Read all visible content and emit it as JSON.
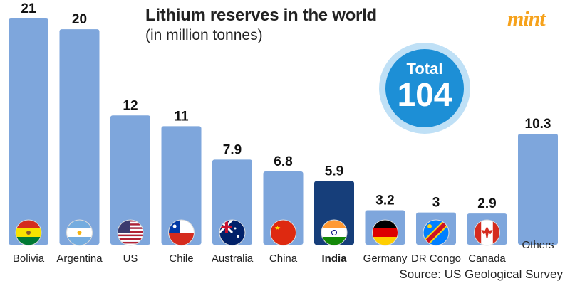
{
  "header": {
    "title": "Lithium reserves in the world",
    "subtitle": "(in million tonnes)",
    "logo": "mint"
  },
  "total": {
    "label": "Total",
    "value": "104"
  },
  "source": "Source: US Geological Survey",
  "colors": {
    "bar": "#7ea6dc",
    "highlight_bar": "#163e7a",
    "badge": "#1d8fd6"
  },
  "chart_data": {
    "type": "bar",
    "categories": [
      "Bolivia",
      "Argentina",
      "US",
      "Chile",
      "Australia",
      "China",
      "India",
      "Germany",
      "DR Congo",
      "Canada",
      "Others"
    ],
    "values": [
      21,
      20,
      12,
      11,
      7.9,
      6.8,
      5.9,
      3.2,
      3,
      2.9,
      10.3
    ],
    "value_labels": [
      "21",
      "20",
      "12",
      "11",
      "7.9",
      "6.8",
      "5.9",
      "3.2",
      "3",
      "2.9",
      "10.3"
    ],
    "highlight": "India",
    "flags": [
      "bolivia-flag-icon",
      "argentina-flag-icon",
      "us-flag-icon",
      "chile-flag-icon",
      "australia-flag-icon",
      "china-flag-icon",
      "india-flag-icon",
      "germany-flag-icon",
      "dr-congo-flag-icon",
      "canada-flag-icon",
      ""
    ],
    "ylim": [
      0,
      21.5
    ],
    "grid": false,
    "legend": "none"
  }
}
